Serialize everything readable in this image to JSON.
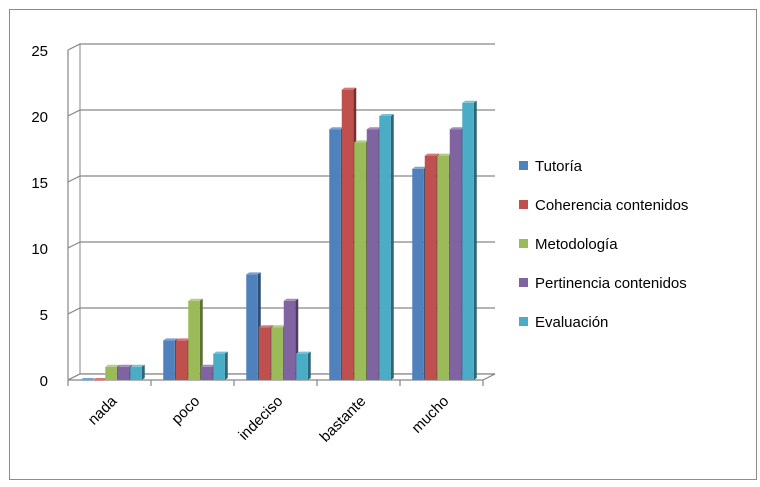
{
  "chart_data": {
    "type": "bar",
    "categories": [
      "nada",
      "poco",
      "indeciso",
      "bastante",
      "mucho"
    ],
    "series": [
      {
        "name": "Tutoría",
        "values": [
          0,
          3,
          8,
          19,
          16
        ],
        "color": "#4F81BD"
      },
      {
        "name": "Coherencia contenidos",
        "values": [
          0,
          3,
          4,
          22,
          17
        ],
        "color": "#C0504D"
      },
      {
        "name": "Metodología",
        "values": [
          1,
          6,
          4,
          18,
          17
        ],
        "color": "#9BBB59"
      },
      {
        "name": "Pertinencia contenidos",
        "values": [
          1,
          1,
          6,
          19,
          19
        ],
        "color": "#8064A2"
      },
      {
        "name": "Evaluación",
        "values": [
          1,
          2,
          2,
          20,
          21
        ],
        "color": "#4BACC6"
      }
    ],
    "y_ticks": [
      "0",
      "5",
      "10",
      "15",
      "20",
      "25"
    ],
    "ylim": [
      0,
      25
    ],
    "grid": true,
    "legend_position": "right",
    "bar_style": "3d-clustered",
    "title": "",
    "xlabel": "",
    "ylabel": ""
  }
}
